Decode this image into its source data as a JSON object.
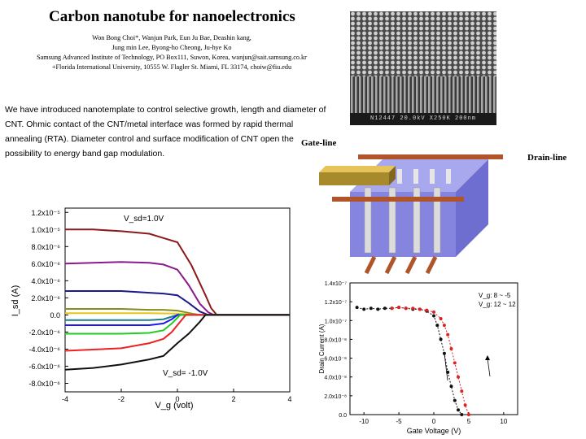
{
  "title": "Carbon nanotube for nanoelectronics",
  "authors": [
    "Won Bong Choi*, Wanjun Park, Eun Ju Bae, Deashin kang,",
    "Jung min Lee, Byong-ho Cheong, Ju-hye Ko",
    "Samsung Advanced Institute of Technology, PO Box111, Suwon, Korea, wanjun@sait.samsung.co.kr",
    "+Florida International University, 10555 W. Flagler St. Miami, FL 33174, choiw@fiu.edu"
  ],
  "body_text": "We have introduced nanotemplate to control selective growth, length and diameter of CNT. Ohmic contact of the CNT/metal interface was formed by rapid thermal annealing (RTA). Diameter control and surface modification of CNT open the possibility to energy band gap modulation.",
  "sem_caption": "N12447  20.0kV  X250K  200nm",
  "diagram": {
    "gate_label": "Gate-line",
    "drain_label": "Drain-line"
  },
  "chart_data": [
    {
      "type": "line",
      "title": "",
      "xlabel": "V_g (volt)",
      "ylabel": "I_sd (A)",
      "xlim": [
        -4,
        4
      ],
      "ylim": [
        -9e-06,
        1.2e-05
      ],
      "xticks": [
        "-4",
        "-2",
        "0",
        "2",
        "4"
      ],
      "yticks": [
        "1.2x10⁻⁵",
        "1.0x10⁻⁵",
        "8.0x10⁻⁶",
        "6.0x10⁻⁶",
        "4.0x10⁻⁶",
        "2.0x10⁻⁶",
        "0.0",
        "-2.0x10⁻⁶",
        "-4.0x10⁻⁶",
        "-6.0x10⁻⁶",
        "-8.0x10⁻⁶"
      ],
      "ytick_values": [
        1.2e-05,
        1e-05,
        8e-06,
        6e-06,
        4e-06,
        2e-06,
        0,
        -2e-06,
        -4e-06,
        -6e-06,
        -8e-06
      ],
      "annotations": [
        "V_sd=1.0V",
        "V_sd= -1.0V"
      ],
      "grid": false,
      "series": [
        {
          "color": "#8b1a1a",
          "x": [
            -4,
            -3,
            -2,
            -1,
            -0.5,
            0,
            0.5,
            1.0,
            1.2,
            1.4
          ],
          "y": [
            1e-05,
            1e-05,
            9.8e-06,
            9.5e-06,
            9e-06,
            8.5e-06,
            5.8e-06,
            2.3e-06,
            8e-07,
            0
          ]
        },
        {
          "color": "#8b1a8b",
          "x": [
            -4,
            -3,
            -2,
            -1,
            -0.5,
            0,
            0.4,
            0.8,
            1.1,
            1.3
          ],
          "y": [
            6e-06,
            6.1e-06,
            6.2e-06,
            6.1e-06,
            5.9e-06,
            5.3e-06,
            3.5e-06,
            1.3e-06,
            3e-07,
            0
          ]
        },
        {
          "color": "#1a1a8b",
          "x": [
            -4,
            -3,
            -2,
            -1,
            -0.5,
            0,
            0.4,
            0.8,
            1.1
          ],
          "y": [
            2.8e-06,
            2.8e-06,
            2.8e-06,
            2.6e-06,
            2.5e-06,
            2.3e-06,
            1.4e-06,
            4e-07,
            0
          ]
        },
        {
          "color": "#8b8b1a",
          "x": [
            -4,
            -3,
            -2,
            -1,
            -0.5,
            0,
            0.3,
            0.6,
            0.8
          ],
          "y": [
            7e-07,
            7e-07,
            7e-07,
            6e-07,
            6e-07,
            5e-07,
            3e-07,
            1e-07,
            0
          ]
        },
        {
          "color": "#e6c619",
          "x": [
            -4,
            -2,
            -1,
            0,
            0.5,
            0.8
          ],
          "y": [
            2e-07,
            2e-07,
            2e-07,
            1.5e-07,
            5e-08,
            0
          ]
        },
        {
          "color": "#1a7d8b",
          "x": [
            -4,
            -2,
            -1,
            -0.5,
            -0.2,
            0
          ],
          "y": [
            -6e-07,
            -6e-07,
            -6e-07,
            -5e-07,
            -2e-07,
            0
          ]
        },
        {
          "color": "#1a1aee",
          "x": [
            -4,
            -2,
            -1,
            -0.5,
            -0.2,
            0
          ],
          "y": [
            -1.2e-06,
            -1.2e-06,
            -1.2e-06,
            -1e-06,
            -5e-07,
            0
          ]
        },
        {
          "color": "#22cc22",
          "x": [
            -4,
            -2,
            -1,
            -0.5,
            -0.2,
            0.1
          ],
          "y": [
            -2.2e-06,
            -2.2e-06,
            -2.1e-06,
            -1.8e-06,
            -1e-06,
            0
          ]
        },
        {
          "color": "#ee2222",
          "x": [
            -4,
            -2,
            -1,
            -0.5,
            -0.2,
            0.1,
            0.3
          ],
          "y": [
            -4.2e-06,
            -3.9e-06,
            -3.3e-06,
            -2.8e-06,
            -2e-06,
            -8e-07,
            0
          ]
        },
        {
          "color": "#111111",
          "x": [
            -4,
            -3,
            -2,
            -1,
            -0.5,
            0,
            0.4,
            0.8,
            1.0
          ],
          "y": [
            -6.4e-06,
            -6.2e-06,
            -5.8e-06,
            -5.2e-06,
            -4.8e-06,
            -3.3e-06,
            -2.2e-06,
            -8e-07,
            0
          ]
        }
      ]
    },
    {
      "type": "scatter",
      "title": "",
      "xlabel": "Gate Voltage (V)",
      "ylabel": "Drain Current (A)",
      "xlim": [
        -12,
        12
      ],
      "ylim": [
        0,
        1.4e-07
      ],
      "xticks": [
        "-10",
        "-5",
        "0",
        "5",
        "10"
      ],
      "xtick_values": [
        -10,
        -5,
        0,
        5,
        10
      ],
      "yticks": [
        "1.4x10⁻⁷",
        "1.2x10⁻⁷",
        "1.0x10⁻⁷",
        "8.0x10⁻⁸",
        "6.0x10⁻⁸",
        "4.0x10⁻⁸",
        "2.0x10⁻⁸",
        "0.0"
      ],
      "ytick_values": [
        1.4e-07,
        1.2e-07,
        1e-07,
        8e-08,
        6e-08,
        4e-08,
        2e-08,
        0
      ],
      "legend": [
        "V_g: 8 ~ -5",
        "V_g: 12 ~ 12"
      ],
      "grid": false,
      "series": [
        {
          "color": "#111111",
          "x": [
            -11,
            -10,
            -9,
            -8,
            -7,
            -6,
            -5,
            -4,
            -3,
            -2,
            -1,
            0,
            0.5,
            1,
            1.5,
            2,
            2.5,
            3,
            3.5,
            4
          ],
          "y": [
            1.14e-07,
            1.12e-07,
            1.13e-07,
            1.12e-07,
            1.13e-07,
            1.13e-07,
            1.14e-07,
            1.13e-07,
            1.12e-07,
            1.12e-07,
            1.1e-07,
            1.05e-07,
            9.5e-08,
            8e-08,
            6.5e-08,
            4.5e-08,
            3e-08,
            1.5e-08,
            5e-09,
            0
          ]
        },
        {
          "color": "#dd2222",
          "x": [
            -6,
            -5,
            -4,
            -3,
            -2,
            -1,
            0,
            1,
            1.5,
            2,
            2.5,
            3,
            3.5,
            4,
            4.5,
            5
          ],
          "y": [
            1.13e-07,
            1.14e-07,
            1.13e-07,
            1.13e-07,
            1.12e-07,
            1.11e-07,
            1.09e-07,
            1.02e-07,
            9.5e-08,
            8.5e-08,
            7e-08,
            5.5e-08,
            4e-08,
            2.5e-08,
            1e-08,
            0
          ]
        }
      ]
    }
  ]
}
